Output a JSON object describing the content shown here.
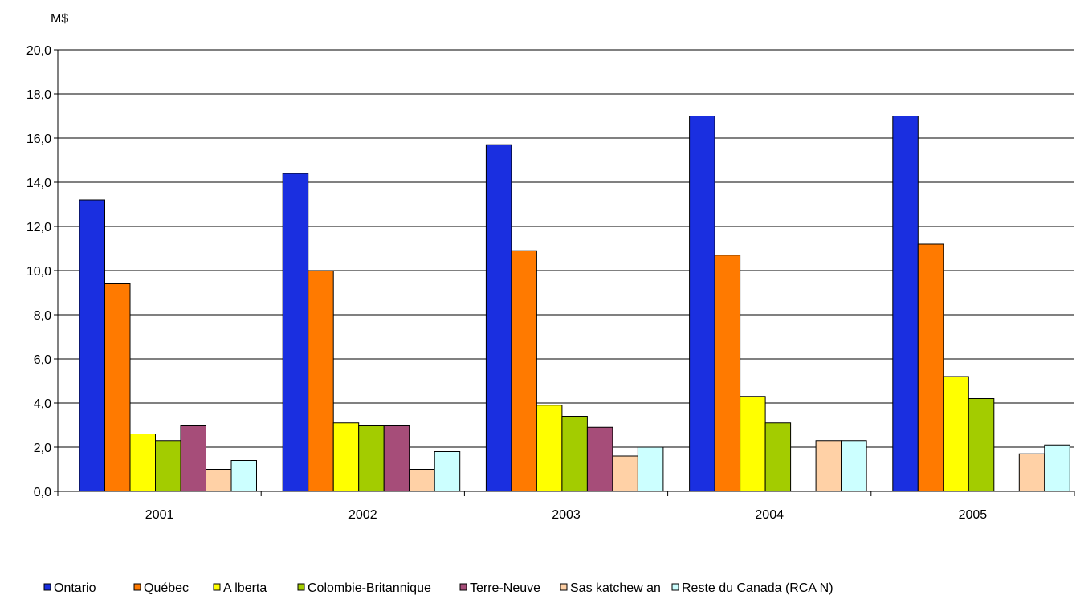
{
  "chart_data": {
    "type": "bar",
    "title": "",
    "xlabel": "",
    "ylabel": "M$",
    "ylim": [
      0,
      20
    ],
    "ytick_step": 2,
    "ytick_labels": [
      "0,0",
      "2,0",
      "4,0",
      "6,0",
      "8,0",
      "10,0",
      "12,0",
      "14,0",
      "16,0",
      "18,0",
      "20,0"
    ],
    "grid": true,
    "legend_position": "bottom",
    "categories": [
      "2001",
      "2002",
      "2003",
      "2004",
      "2005"
    ],
    "series": [
      {
        "name": "Ontario",
        "color": "#1a2fe0",
        "values": [
          13.2,
          14.4,
          15.7,
          17.0,
          17.0
        ]
      },
      {
        "name": "Québec",
        "color": "#ff7a00",
        "values": [
          9.4,
          10.0,
          10.9,
          10.7,
          11.2
        ]
      },
      {
        "name": "A lberta",
        "color": "#ffff00",
        "values": [
          2.6,
          3.1,
          3.9,
          4.3,
          5.2
        ]
      },
      {
        "name": "Colombie-Britannique",
        "color": "#a3cc00",
        "values": [
          2.3,
          3.0,
          3.4,
          3.1,
          4.2
        ]
      },
      {
        "name": "Terre-Neuve",
        "color": "#a64d79",
        "values": [
          3.0,
          3.0,
          2.9,
          null,
          null
        ]
      },
      {
        "name": "Sas katchew an",
        "color": "#ffd1a6",
        "values": [
          1.0,
          1.0,
          1.6,
          2.3,
          1.7
        ]
      },
      {
        "name": "Reste du Canada (RCA N)",
        "color": "#ccffff",
        "values": [
          1.4,
          1.8,
          2.0,
          2.3,
          2.1
        ]
      }
    ]
  }
}
